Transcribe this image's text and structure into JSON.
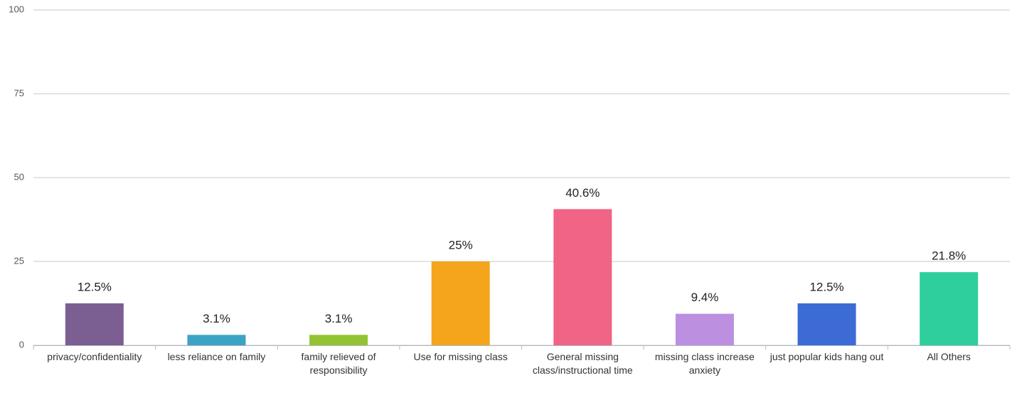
{
  "chart_data": {
    "type": "bar",
    "categories": [
      "privacy/confidentiality",
      "less reliance on family",
      "family relieved of responsibility",
      "Use for missing class",
      "General missing class/instructional time",
      "missing class increase anxiety",
      "just popular kids hang out",
      "All Others"
    ],
    "values": [
      12.5,
      3.1,
      3.1,
      25,
      40.6,
      9.4,
      12.5,
      21.8
    ],
    "value_labels": [
      "12.5%",
      "3.1%",
      "3.1%",
      "25%",
      "40.6%",
      "9.4%",
      "12.5%",
      "21.8%"
    ],
    "colors": [
      "#7b5f93",
      "#3ba3c4",
      "#93c332",
      "#f4a51c",
      "#f06485",
      "#bd8fe0",
      "#3c6bd6",
      "#2ecf9c"
    ],
    "ylim": [
      0,
      100
    ],
    "yticks": [
      0,
      25,
      50,
      75,
      100
    ],
    "grid": true
  }
}
